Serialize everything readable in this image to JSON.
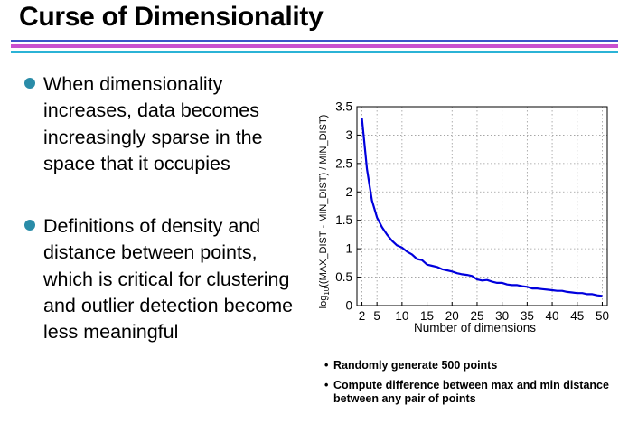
{
  "slide": {
    "title": "Curse of Dimensionality",
    "bullets": [
      {
        "text": "When dimensionality increases, data becomes increasingly sparse in the space that it occupies"
      },
      {
        "text": "Definitions of density and distance between points, which is critical for clustering and outlier detection become less meaningful"
      }
    ],
    "notes": [
      {
        "text": "Randomly generate 500 points"
      },
      {
        "text": "Compute difference between max and min distance between any pair of points"
      }
    ],
    "note_marker": "•",
    "colors": {
      "bullet": "#2a8ca8",
      "line": "#0000dd",
      "rule_blue": "#3a55c8",
      "rule_magenta": "#c94fcf",
      "rule_cyan": "#2bb3d6"
    }
  },
  "chart_data": {
    "type": "line",
    "xlabel": "Number of dimensions",
    "ylabel_parts": {
      "pre": "log",
      "sub": "10",
      "post": "((MAX_DIST - MIN_DIST) / MIN_DIST)"
    },
    "xlim": [
      1,
      51
    ],
    "ylim": [
      0,
      3.5
    ],
    "x_ticks": [
      2,
      5,
      10,
      15,
      20,
      25,
      30,
      35,
      40,
      45,
      50
    ],
    "y_ticks": [
      0,
      0.5,
      1,
      1.5,
      2,
      2.5,
      3,
      3.5
    ],
    "y_tick_labels": [
      "0",
      "0.5",
      "1",
      "1.5",
      "2",
      "2.5",
      "3",
      "3.5"
    ],
    "grid": true,
    "series": [
      {
        "x": [
          2,
          3,
          4,
          5,
          6,
          7,
          8,
          9,
          10,
          11,
          12,
          13,
          14,
          15,
          16,
          17,
          18,
          19,
          20,
          21,
          22,
          23,
          24,
          25,
          26,
          27,
          28,
          29,
          30,
          31,
          32,
          33,
          34,
          35,
          36,
          37,
          38,
          39,
          40,
          41,
          42,
          43,
          44,
          45,
          46,
          47,
          48,
          49,
          50
        ],
        "values": [
          3.3,
          2.4,
          1.85,
          1.55,
          1.38,
          1.25,
          1.14,
          1.06,
          1.02,
          0.95,
          0.9,
          0.82,
          0.8,
          0.72,
          0.7,
          0.68,
          0.64,
          0.62,
          0.6,
          0.57,
          0.55,
          0.54,
          0.52,
          0.46,
          0.44,
          0.45,
          0.42,
          0.4,
          0.4,
          0.37,
          0.36,
          0.36,
          0.34,
          0.33,
          0.3,
          0.3,
          0.29,
          0.28,
          0.27,
          0.26,
          0.26,
          0.24,
          0.23,
          0.22,
          0.22,
          0.2,
          0.2,
          0.18,
          0.17
        ]
      }
    ]
  }
}
